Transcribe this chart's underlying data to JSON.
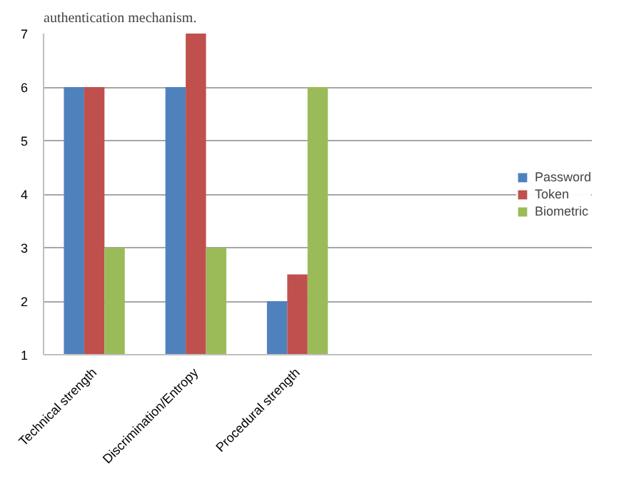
{
  "chart_data": {
    "type": "bar",
    "categories": [
      "Technical strength",
      "Discrimination/Entropy",
      "Procedural strength",
      null
    ],
    "series": [
      {
        "name": "Password",
        "color": "#4f81bd",
        "values": [
          6,
          6,
          2,
          null
        ]
      },
      {
        "name": "Token",
        "color": "#c0504d",
        "values": [
          6,
          7,
          2.5,
          null
        ]
      },
      {
        "name": "Biometric",
        "color": "#9bbb59",
        "values": [
          3,
          3,
          6,
          null
        ]
      }
    ],
    "ylim": [
      1,
      7
    ],
    "yticks": [
      1,
      2,
      3,
      4,
      5,
      6,
      7
    ],
    "grid": "y",
    "legend": "right",
    "annotations": [
      "authentication mechanism."
    ]
  }
}
